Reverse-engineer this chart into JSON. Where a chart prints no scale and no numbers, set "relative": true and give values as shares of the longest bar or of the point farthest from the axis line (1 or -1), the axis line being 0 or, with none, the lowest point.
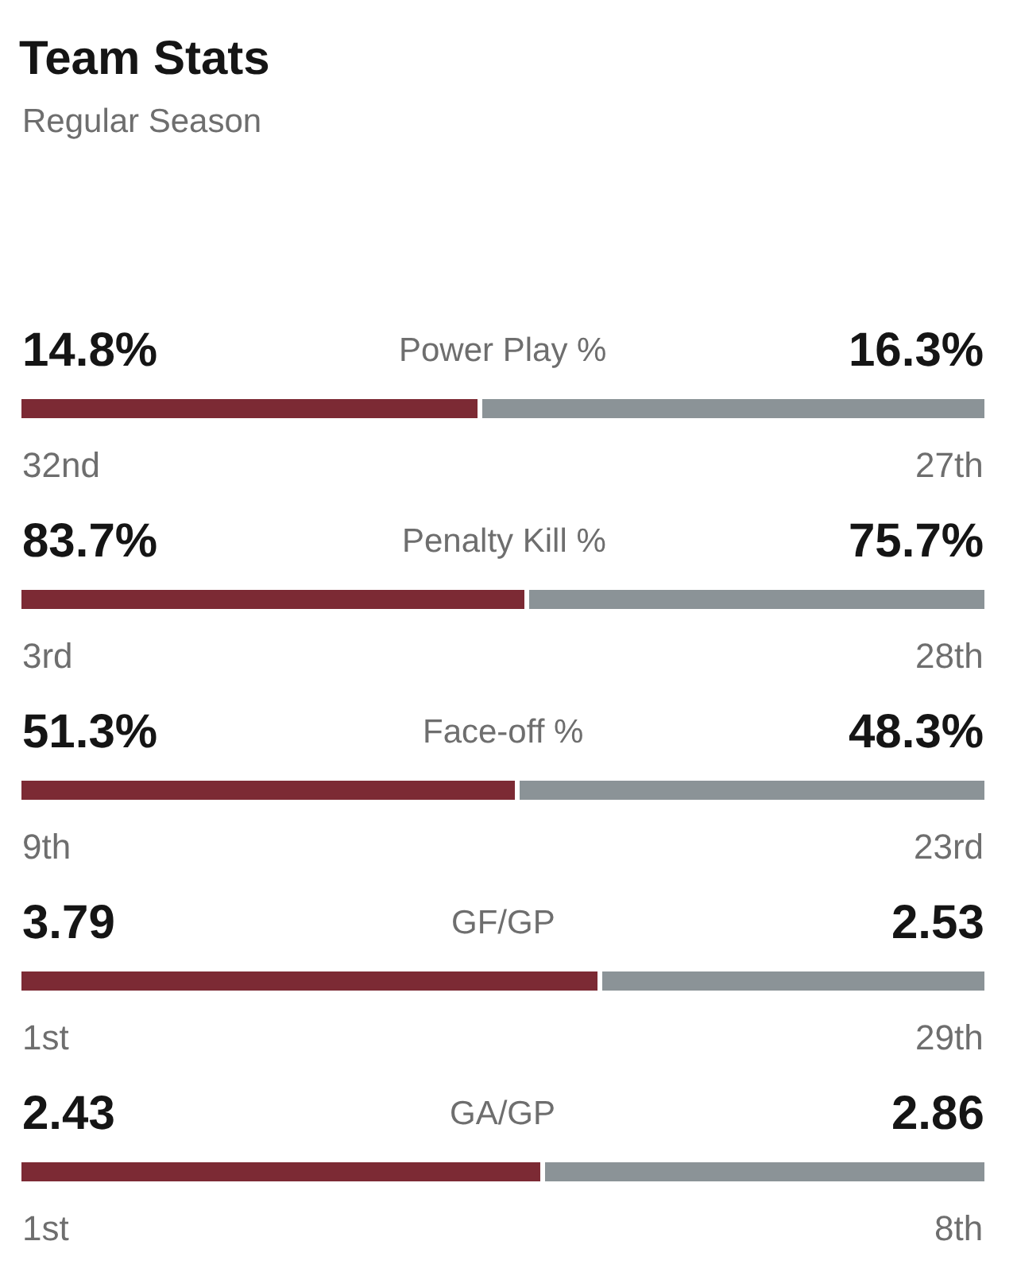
{
  "chart_data": {
    "type": "bar",
    "orientation": "horizontal",
    "stacked": true,
    "relative": true,
    "title": "Team Stats",
    "subtitle": "Regular Season",
    "categories": [
      "Power Play %",
      "Penalty Kill %",
      "Face-off %",
      "GF/GP",
      "GA/GP"
    ],
    "series": [
      {
        "color": "#7c2a34",
        "values": [
          0.476,
          0.525,
          0.515,
          0.6,
          0.541
        ]
      },
      {
        "color": "#8b9397",
        "values": [
          0.524,
          0.475,
          0.485,
          0.4,
          0.459
        ]
      }
    ],
    "tick_labels": "y",
    "annotations": [
      "14.8%",
      "16.3%",
      "32nd",
      "27th",
      "83.7%",
      "75.7%",
      "3rd",
      "28th",
      "51.3%",
      "48.3%",
      "9th",
      "23rd",
      "3.79",
      "2.53",
      "1st",
      "29th",
      "2.43",
      "2.86",
      "1st",
      "8th"
    ]
  }
}
